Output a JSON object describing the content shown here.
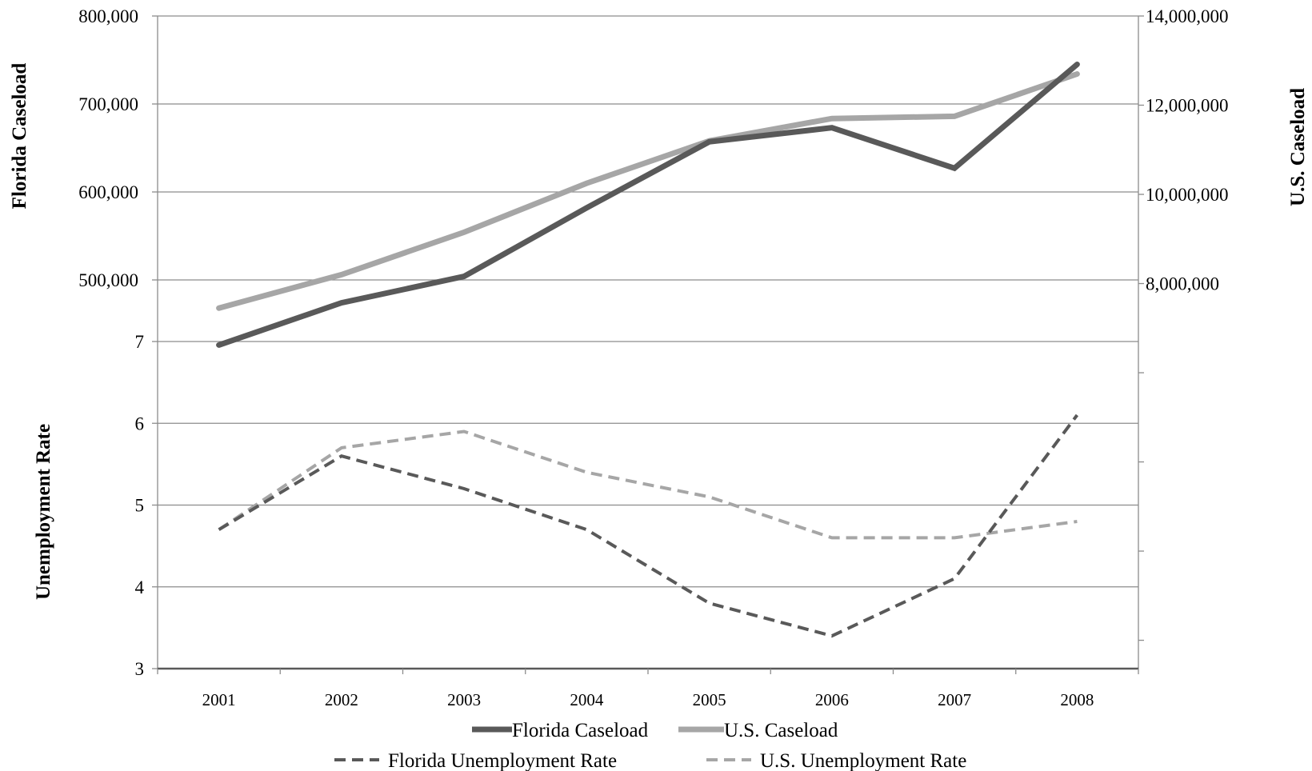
{
  "chart_data": {
    "type": "line",
    "categories": [
      "2001",
      "2002",
      "2003",
      "2004",
      "2005",
      "2006",
      "2007",
      "2008"
    ],
    "panels": [
      {
        "name": "caseload",
        "ylabel_left": "Florida Caseload",
        "ylabel_right": "U.S. Caseload",
        "ylim_left": [
          430000,
          800000
        ],
        "ylim_right": [
          6700000,
          14000000
        ],
        "yticks_left": [
          {
            "value": 500000,
            "label": "500,000"
          },
          {
            "value": 600000,
            "label": "600,000"
          },
          {
            "value": 700000,
            "label": "700,000"
          },
          {
            "value": 800000,
            "label": "800,000"
          }
        ],
        "yticks_right": [
          {
            "value": 8000000,
            "label": "8,000,000"
          },
          {
            "value": 10000000,
            "label": "10,000,000"
          },
          {
            "value": 12000000,
            "label": "12,000,000"
          },
          {
            "value": 14000000,
            "label": "14,000,000"
          }
        ],
        "series": [
          {
            "name": "Florida Caseload",
            "axis": "left",
            "color": "#595959",
            "dashed": false,
            "values": [
              426000,
              474000,
              504000,
              582000,
              657000,
              673000,
              627000,
              745000
            ]
          },
          {
            "name": "U.S. Caseload",
            "axis": "right",
            "color": "#a6a6a6",
            "dashed": false,
            "values": [
              7450000,
              8200000,
              9150000,
              10250000,
              11200000,
              11700000,
              11750000,
              12700000
            ]
          }
        ]
      },
      {
        "name": "unemployment",
        "ylabel_left": "Unemployment Rate",
        "ylim_left": [
          3,
          7
        ],
        "yticks_left": [
          {
            "value": 3,
            "label": "3"
          },
          {
            "value": 4,
            "label": "4"
          },
          {
            "value": 5,
            "label": "5"
          },
          {
            "value": 6,
            "label": "6"
          },
          {
            "value": 7,
            "label": "7"
          }
        ],
        "series": [
          {
            "name": "Florida Unemployment Rate",
            "axis": "left",
            "color": "#595959",
            "dashed": true,
            "values": [
              4.7,
              5.6,
              5.2,
              4.7,
              3.8,
              3.4,
              4.1,
              6.1
            ]
          },
          {
            "name": "U.S. Unemployment Rate",
            "axis": "left",
            "color": "#a6a6a6",
            "dashed": true,
            "values": [
              4.7,
              5.7,
              5.9,
              5.4,
              5.1,
              4.6,
              4.6,
              4.8
            ]
          }
        ]
      }
    ],
    "grid": true,
    "legend_placement": "bottom"
  }
}
